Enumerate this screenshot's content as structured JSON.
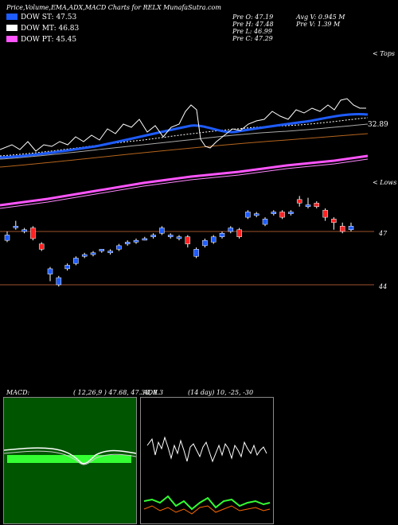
{
  "header": {
    "title": "Price,Volume,EMA,ADX,MACD Charts for RELX  MunafaSutra.com"
  },
  "legend": [
    {
      "label": "DOW ST: 47.53",
      "color": "#1e5cff"
    },
    {
      "label": "DOW MT: 46.83",
      "color": "#ffffff"
    },
    {
      "label": "DOW PT: 45.45",
      "color": "#ff55ff"
    }
  ],
  "stats": {
    "open": "Pre   O: 47.19",
    "high": "Pre   H: 47.48",
    "low": "Pre   L: 46.99",
    "close": "Pre   C: 47.29",
    "avg_volume": "Avg V: 0.945 M",
    "volume": "Pre   V: 1.39 M"
  },
  "annotations": {
    "upper_right": "< Tops",
    "lower_right": "< Lows",
    "value_label": "32.89",
    "level_47": "47",
    "level_44": "44"
  },
  "macd_panel": {
    "title": "MACD:",
    "params": "( 12,26,9 ) 47.68, 47.38, 0.3"
  },
  "adx_panel": {
    "title": "ADX",
    "params": "(14 day) 10, -25, -30"
  },
  "chart_data": {
    "type": "candlestick",
    "price_range": [
      41.5,
      51.5
    ],
    "levels": [
      47,
      44
    ],
    "candles": [
      {
        "o": 46.5,
        "c": 46.8,
        "h": 47.0,
        "l": 46.4,
        "up": true
      },
      {
        "o": 47.3,
        "c": 47.3,
        "h": 47.6,
        "l": 47.1,
        "up": true
      },
      {
        "o": 47.0,
        "c": 47.1,
        "h": 47.2,
        "l": 46.9,
        "up": true
      },
      {
        "o": 47.2,
        "c": 46.6,
        "h": 47.3,
        "l": 46.5,
        "up": false
      },
      {
        "o": 46.3,
        "c": 46.0,
        "h": 46.4,
        "l": 45.9,
        "up": false
      },
      {
        "o": 44.6,
        "c": 44.9,
        "h": 45.0,
        "l": 44.2,
        "up": true
      },
      {
        "o": 44.0,
        "c": 44.4,
        "h": 44.5,
        "l": 43.9,
        "up": true
      },
      {
        "o": 44.9,
        "c": 45.1,
        "h": 45.2,
        "l": 44.8,
        "up": true
      },
      {
        "o": 45.2,
        "c": 45.5,
        "h": 45.6,
        "l": 45.1,
        "up": true
      },
      {
        "o": 45.6,
        "c": 45.7,
        "h": 45.8,
        "l": 45.5,
        "up": true
      },
      {
        "o": 45.7,
        "c": 45.8,
        "h": 45.9,
        "l": 45.6,
        "up": true
      },
      {
        "o": 45.9,
        "c": 46.0,
        "h": 46.0,
        "l": 45.8,
        "up": true
      },
      {
        "o": 45.8,
        "c": 45.9,
        "h": 46.0,
        "l": 45.7,
        "up": true
      },
      {
        "o": 46.0,
        "c": 46.2,
        "h": 46.3,
        "l": 45.9,
        "up": true
      },
      {
        "o": 46.3,
        "c": 46.4,
        "h": 46.5,
        "l": 46.2,
        "up": true
      },
      {
        "o": 46.4,
        "c": 46.5,
        "h": 46.6,
        "l": 46.3,
        "up": true
      },
      {
        "o": 46.6,
        "c": 46.6,
        "h": 46.7,
        "l": 46.5,
        "up": true
      },
      {
        "o": 46.7,
        "c": 46.8,
        "h": 46.9,
        "l": 46.6,
        "up": true
      },
      {
        "o": 46.9,
        "c": 47.2,
        "h": 47.3,
        "l": 46.8,
        "up": true
      },
      {
        "o": 46.7,
        "c": 46.8,
        "h": 46.9,
        "l": 46.6,
        "up": true
      },
      {
        "o": 46.6,
        "c": 46.7,
        "h": 46.8,
        "l": 46.5,
        "up": true
      },
      {
        "o": 46.7,
        "c": 46.3,
        "h": 46.8,
        "l": 46.1,
        "up": false
      },
      {
        "o": 45.6,
        "c": 46.0,
        "h": 46.1,
        "l": 45.5,
        "up": true
      },
      {
        "o": 46.2,
        "c": 46.5,
        "h": 46.6,
        "l": 46.1,
        "up": true
      },
      {
        "o": 46.4,
        "c": 46.7,
        "h": 46.8,
        "l": 46.3,
        "up": true
      },
      {
        "o": 46.7,
        "c": 46.9,
        "h": 47.0,
        "l": 46.6,
        "up": true
      },
      {
        "o": 47.0,
        "c": 47.2,
        "h": 47.3,
        "l": 46.9,
        "up": true
      },
      {
        "o": 47.1,
        "c": 46.7,
        "h": 47.2,
        "l": 46.6,
        "up": false
      },
      {
        "o": 47.8,
        "c": 48.1,
        "h": 48.2,
        "l": 47.7,
        "up": true
      },
      {
        "o": 47.9,
        "c": 48.0,
        "h": 48.1,
        "l": 47.8,
        "up": true
      },
      {
        "o": 47.4,
        "c": 47.7,
        "h": 47.8,
        "l": 47.3,
        "up": true
      },
      {
        "o": 48.0,
        "c": 48.1,
        "h": 48.2,
        "l": 47.9,
        "up": true
      },
      {
        "o": 48.1,
        "c": 47.8,
        "h": 48.2,
        "l": 47.7,
        "up": false
      },
      {
        "o": 48.0,
        "c": 48.1,
        "h": 48.2,
        "l": 47.9,
        "up": true
      },
      {
        "o": 48.8,
        "c": 48.6,
        "h": 49.0,
        "l": 48.4,
        "up": false
      },
      {
        "o": 48.4,
        "c": 48.5,
        "h": 48.9,
        "l": 48.3,
        "up": true
      },
      {
        "o": 48.6,
        "c": 48.4,
        "h": 48.7,
        "l": 48.3,
        "up": false
      },
      {
        "o": 48.2,
        "c": 47.8,
        "h": 48.3,
        "l": 47.6,
        "up": false
      },
      {
        "o": 47.7,
        "c": 47.5,
        "h": 47.8,
        "l": 47.1,
        "up": false
      },
      {
        "o": 47.3,
        "c": 47.0,
        "h": 47.5,
        "l": 46.9,
        "up": false
      },
      {
        "o": 47.1,
        "c": 47.3,
        "h": 47.5,
        "l": 47.0,
        "up": true
      }
    ]
  }
}
